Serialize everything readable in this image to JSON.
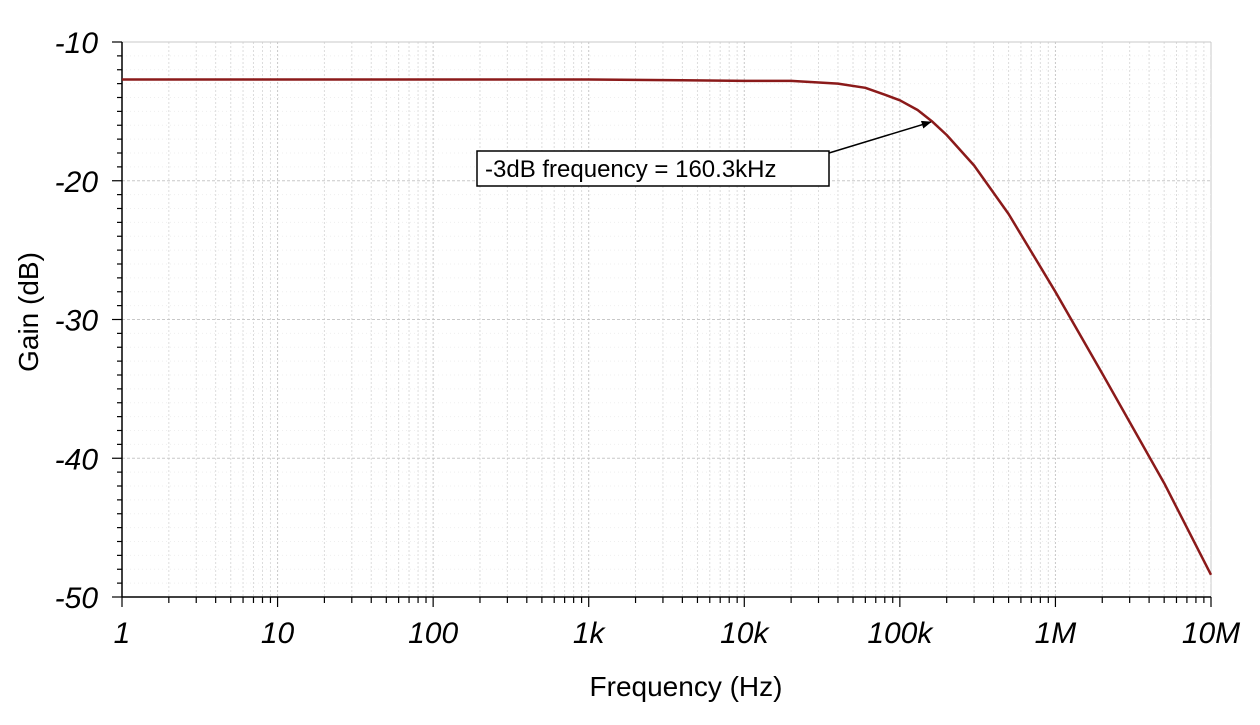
{
  "chart_data": {
    "type": "line",
    "title": "",
    "xlabel": "Frequency (Hz)",
    "ylabel": "Gain (dB)",
    "x_scale": "log",
    "xlim": [
      1,
      10000000
    ],
    "ylim": [
      -50,
      -10
    ],
    "x_ticks": [
      1,
      10,
      100,
      1000,
      10000,
      100000,
      1000000,
      10000000
    ],
    "x_tick_labels": [
      "1",
      "10",
      "100",
      "1k",
      "10k",
      "100k",
      "1M",
      "10M"
    ],
    "y_ticks": [
      -10,
      -20,
      -30,
      -40,
      -50
    ],
    "y_tick_labels": [
      "-10",
      "-20",
      "-30",
      "-40",
      "-50"
    ],
    "grid": true,
    "series": [
      {
        "color": "#8b1a1a",
        "x": [
          1,
          10,
          100,
          1000,
          4000,
          10000,
          20000,
          40000,
          60000,
          80000,
          100000,
          130000,
          160300,
          200000,
          300000,
          500000,
          1000000,
          2000000,
          5000000,
          10000000
        ],
        "y": [
          -12.7,
          -12.7,
          -12.7,
          -12.7,
          -12.75,
          -12.8,
          -12.8,
          -13.0,
          -13.3,
          -13.8,
          -14.2,
          -14.9,
          -15.7,
          -16.7,
          -18.9,
          -22.4,
          -28.0,
          -33.9,
          -41.8,
          -48.4
        ]
      }
    ],
    "annotations": [
      {
        "text": "-3dB frequency = 160.3kHz",
        "x": 160300,
        "y": -15.7
      }
    ]
  }
}
